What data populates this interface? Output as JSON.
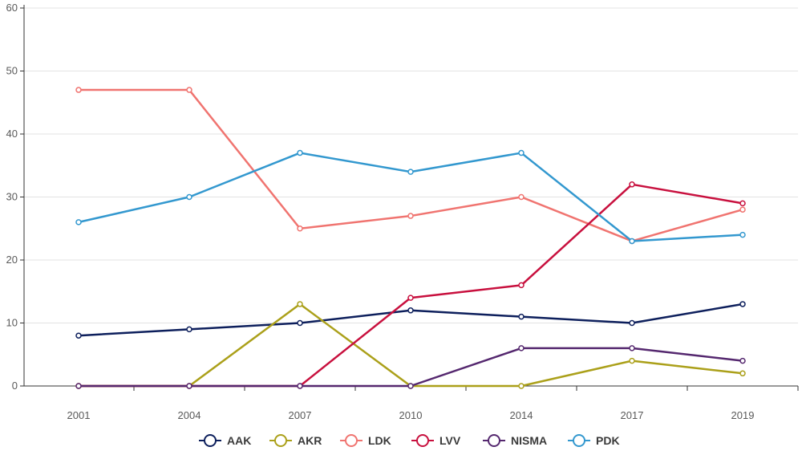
{
  "chart_data": {
    "type": "line",
    "categories": [
      "2001",
      "2004",
      "2007",
      "2010",
      "2014",
      "2017",
      "2019"
    ],
    "ylim": [
      0,
      60
    ],
    "yticks": [
      0,
      10,
      20,
      30,
      40,
      50,
      60
    ],
    "grid": true,
    "legend_position": "bottom-center",
    "series": [
      {
        "name": "AAK",
        "color": "#0d1f5c",
        "values": [
          8,
          9,
          10,
          12,
          11,
          10,
          13
        ]
      },
      {
        "name": "AKR",
        "color": "#aba01a",
        "values": [
          0,
          0,
          13,
          0,
          0,
          4,
          2
        ]
      },
      {
        "name": "LDK",
        "color": "#f07470",
        "values": [
          47,
          47,
          25,
          27,
          30,
          23,
          28
        ]
      },
      {
        "name": "LVV",
        "color": "#c8103e",
        "values": [
          0,
          0,
          0,
          14,
          16,
          32,
          29
        ]
      },
      {
        "name": "NISMA",
        "color": "#55286f",
        "values": [
          0,
          0,
          0,
          0,
          6,
          6,
          4
        ]
      },
      {
        "name": "PDK",
        "color": "#3398cf",
        "values": [
          26,
          30,
          37,
          34,
          37,
          23,
          24
        ]
      }
    ]
  }
}
